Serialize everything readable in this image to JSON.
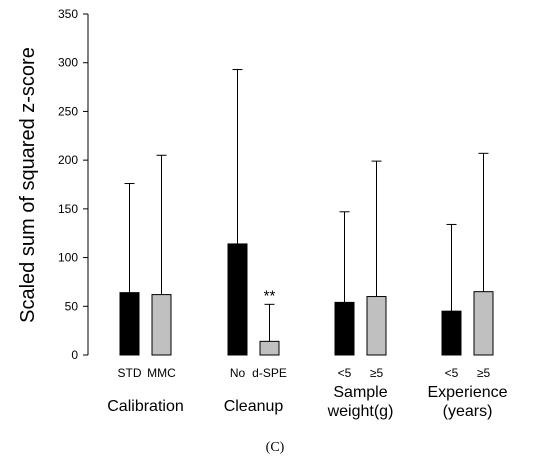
{
  "chart_data": {
    "type": "bar",
    "title": "",
    "ylabel": "Scaled sum of squared z-score",
    "ylim": [
      0,
      350
    ],
    "yticks": [
      0,
      50,
      100,
      150,
      200,
      250,
      300,
      350
    ],
    "grid": false,
    "groups": [
      {
        "label": "Calibration",
        "bars": [
          {
            "category": "STD",
            "value": 64,
            "error_upper": 176,
            "color": "black"
          },
          {
            "category": "MMC",
            "value": 62,
            "error_upper": 205,
            "color": "gray"
          }
        ]
      },
      {
        "label": "Cleanup",
        "bars": [
          {
            "category": "No",
            "value": 114,
            "error_upper": 293,
            "color": "black"
          },
          {
            "category": "d-SPE",
            "value": 14,
            "error_upper": 52,
            "color": "gray",
            "annotation": "**"
          }
        ]
      },
      {
        "label": "Sample\nweight(g)",
        "bars": [
          {
            "category": "<5",
            "value": 54,
            "error_upper": 147,
            "color": "black"
          },
          {
            "category": "≥5",
            "value": 60,
            "error_upper": 199,
            "color": "gray"
          }
        ]
      },
      {
        "label": "Experience\n(years)",
        "bars": [
          {
            "category": "<5",
            "value": 45,
            "error_upper": 134,
            "color": "black"
          },
          {
            "category": "≥5",
            "value": 65,
            "error_upper": 207,
            "color": "gray"
          }
        ]
      }
    ]
  },
  "panel_label": "(C)",
  "colors": {
    "black": "#000000",
    "gray": "#c0c0c0",
    "axis": "#000000"
  }
}
